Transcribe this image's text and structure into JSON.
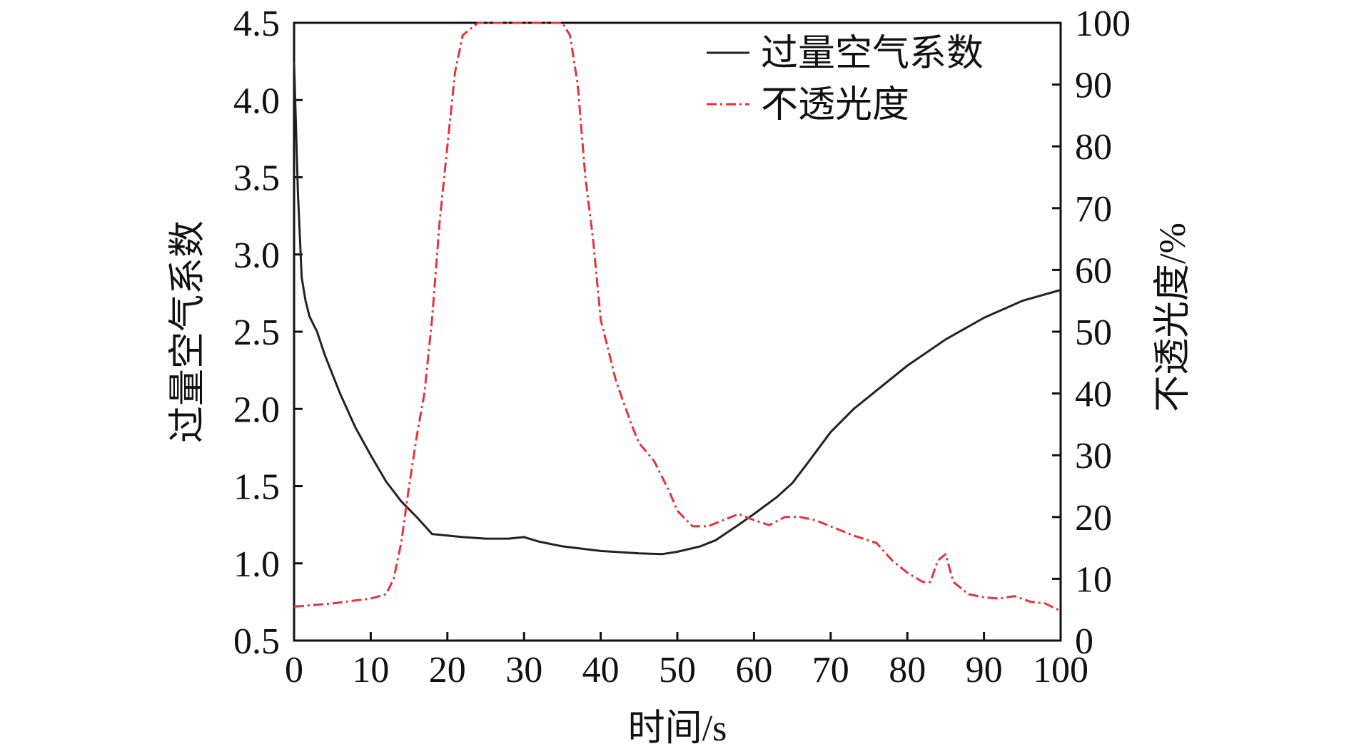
{
  "chart_data": {
    "type": "line",
    "title": "",
    "xlabel": "时间/s",
    "ylabel_left": "过量空气系数",
    "ylabel_right": "不透光度/%",
    "xlim": [
      0,
      100
    ],
    "ylim_left": [
      0.5,
      4.5
    ],
    "ylim_right": [
      0,
      100
    ],
    "x_ticks": [
      "0",
      "10",
      "20",
      "30",
      "40",
      "50",
      "60",
      "70",
      "80",
      "90",
      "100"
    ],
    "y_left_ticks": [
      "0.5",
      "1.0",
      "1.5",
      "2.0",
      "2.5",
      "3.0",
      "3.5",
      "4.0",
      "4.5"
    ],
    "y_right_ticks": [
      "0",
      "10",
      "20",
      "30",
      "40",
      "50",
      "60",
      "70",
      "80",
      "90",
      "100"
    ],
    "grid": false,
    "legend_position": "top-right",
    "series": [
      {
        "name": "过量空气系数",
        "axis": "left",
        "color": "#222222",
        "style": "solid",
        "points": [
          [
            0,
            4.25
          ],
          [
            0.5,
            3.4
          ],
          [
            1,
            2.85
          ],
          [
            1.5,
            2.7
          ],
          [
            2,
            2.6
          ],
          [
            3,
            2.5
          ],
          [
            4,
            2.35
          ],
          [
            6,
            2.1
          ],
          [
            8,
            1.88
          ],
          [
            10,
            1.7
          ],
          [
            12,
            1.53
          ],
          [
            14,
            1.4
          ],
          [
            16,
            1.3
          ],
          [
            18,
            1.19
          ],
          [
            20,
            1.18
          ],
          [
            22,
            1.17
          ],
          [
            25,
            1.16
          ],
          [
            28,
            1.16
          ],
          [
            30,
            1.17
          ],
          [
            32,
            1.14
          ],
          [
            35,
            1.11
          ],
          [
            40,
            1.08
          ],
          [
            45,
            1.065
          ],
          [
            48,
            1.06
          ],
          [
            50,
            1.075
          ],
          [
            53,
            1.11
          ],
          [
            55,
            1.15
          ],
          [
            58,
            1.25
          ],
          [
            60,
            1.32
          ],
          [
            63,
            1.43
          ],
          [
            65,
            1.52
          ],
          [
            67,
            1.65
          ],
          [
            70,
            1.85
          ],
          [
            73,
            2.0
          ],
          [
            76,
            2.12
          ],
          [
            80,
            2.28
          ],
          [
            85,
            2.45
          ],
          [
            90,
            2.59
          ],
          [
            95,
            2.7
          ],
          [
            100,
            2.77
          ]
        ]
      },
      {
        "name": "不透光度",
        "axis": "right",
        "color": "#e8323c",
        "style": "dashdot",
        "points": [
          [
            0,
            5.5
          ],
          [
            2,
            5.7
          ],
          [
            5,
            6
          ],
          [
            8,
            6.5
          ],
          [
            10,
            6.8
          ],
          [
            12,
            7.5
          ],
          [
            13,
            10
          ],
          [
            14,
            16
          ],
          [
            15,
            25
          ],
          [
            16,
            33
          ],
          [
            17,
            40
          ],
          [
            18,
            52
          ],
          [
            19,
            68
          ],
          [
            20,
            80
          ],
          [
            21,
            92
          ],
          [
            22,
            98
          ],
          [
            24,
            100
          ],
          [
            28,
            100
          ],
          [
            32,
            100
          ],
          [
            35,
            100
          ],
          [
            36,
            98
          ],
          [
            37,
            90
          ],
          [
            38,
            75
          ],
          [
            39,
            65
          ],
          [
            40,
            52
          ],
          [
            42,
            42
          ],
          [
            44,
            35
          ],
          [
            45,
            32
          ],
          [
            47,
            29
          ],
          [
            49,
            24
          ],
          [
            50,
            21
          ],
          [
            52,
            18.5
          ],
          [
            54,
            18.5
          ],
          [
            56,
            19.5
          ],
          [
            58,
            20.5
          ],
          [
            60,
            19.5
          ],
          [
            62,
            18.7
          ],
          [
            64,
            20
          ],
          [
            66,
            20
          ],
          [
            68,
            19.5
          ],
          [
            70,
            18.5
          ],
          [
            73,
            17
          ],
          [
            76,
            15.8
          ],
          [
            78,
            13
          ],
          [
            80,
            11
          ],
          [
            82,
            9.5
          ],
          [
            83,
            9.5
          ],
          [
            84,
            13
          ],
          [
            85,
            14
          ],
          [
            86,
            9.5
          ],
          [
            88,
            7.5
          ],
          [
            90,
            7
          ],
          [
            92,
            6.8
          ],
          [
            94,
            7.2
          ],
          [
            96,
            6.3
          ],
          [
            98,
            6
          ],
          [
            100,
            4.8
          ]
        ]
      }
    ]
  }
}
